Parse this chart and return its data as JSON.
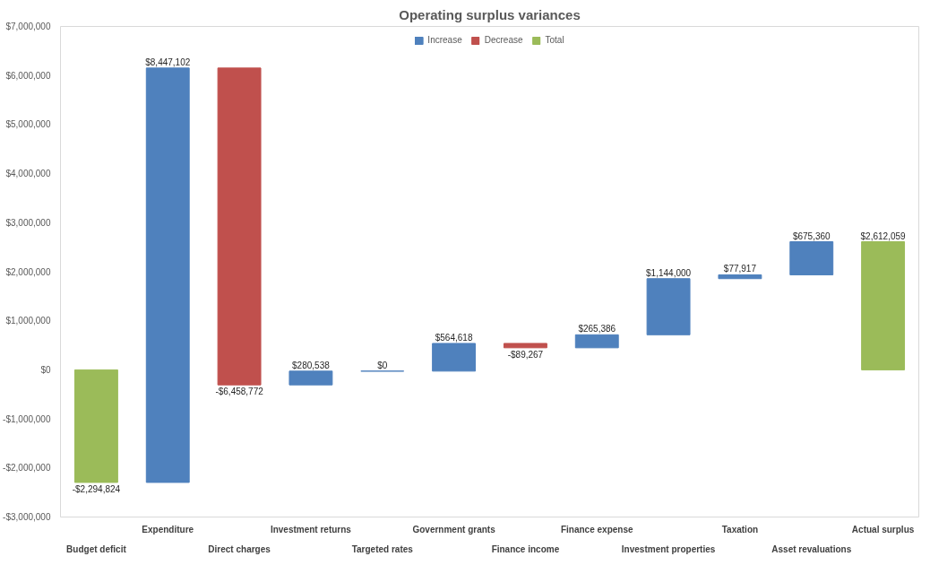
{
  "chart_data": {
    "type": "bar",
    "title": "Operating surplus variances",
    "categories": [
      "Budget deficit",
      "Expenditure",
      "Direct charges",
      "Investment returns",
      "Targeted rates",
      "Government grants",
      "Finance income",
      "Finance expense",
      "Investment properties",
      "Taxation",
      "Asset revaluations",
      "Actual surplus"
    ],
    "series": [
      {
        "name": "Increase",
        "color": "#4f81bd",
        "base": [
          null,
          -2294824,
          null,
          -306494,
          -25956,
          -25956,
          null,
          449395,
          714781,
          1858781,
          1936698,
          null
        ],
        "values": [
          null,
          8447102,
          null,
          280538,
          0,
          564618,
          null,
          265386,
          1144000,
          77917,
          675360,
          null
        ]
      },
      {
        "name": "Decrease",
        "color": "#c0504d",
        "base": [
          null,
          null,
          6152278,
          null,
          null,
          null,
          538662,
          null,
          null,
          null,
          null,
          null
        ],
        "values": [
          null,
          null,
          -6458772,
          null,
          null,
          null,
          -89267,
          null,
          null,
          null,
          null,
          null
        ]
      },
      {
        "name": "Total",
        "color": "#9bbb59",
        "base": [
          0,
          null,
          null,
          null,
          null,
          null,
          null,
          null,
          null,
          null,
          null,
          0
        ],
        "values": [
          -2294824,
          null,
          null,
          null,
          null,
          null,
          null,
          null,
          null,
          null,
          null,
          2612059
        ]
      }
    ],
    "value_labels": [
      "-$2,294,824",
      "$8,447,102",
      "-$6,458,772",
      "$280,538",
      "$0",
      "$564,618",
      "-$89,267",
      "$265,386",
      "$1,144,000",
      "$77,917",
      "$675,360",
      "$2,612,059"
    ],
    "ylim": [
      -3000000,
      7000000
    ],
    "yticks": [
      {
        "value": -3000000,
        "label": "-$3,000,000"
      },
      {
        "value": -2000000,
        "label": "-$2,000,000"
      },
      {
        "value": -1000000,
        "label": "-$1,000,000"
      },
      {
        "value": 0,
        "label": "$0"
      },
      {
        "value": 1000000,
        "label": "$1,000,000"
      },
      {
        "value": 2000000,
        "label": "$2,000,000"
      },
      {
        "value": 3000000,
        "label": "$3,000,000"
      },
      {
        "value": 4000000,
        "label": "$4,000,000"
      },
      {
        "value": 5000000,
        "label": "$5,000,000"
      },
      {
        "value": 6000000,
        "label": "$6,000,000"
      },
      {
        "value": 7000000,
        "label": "$7,000,000"
      }
    ],
    "grid": false,
    "legend": "top"
  }
}
